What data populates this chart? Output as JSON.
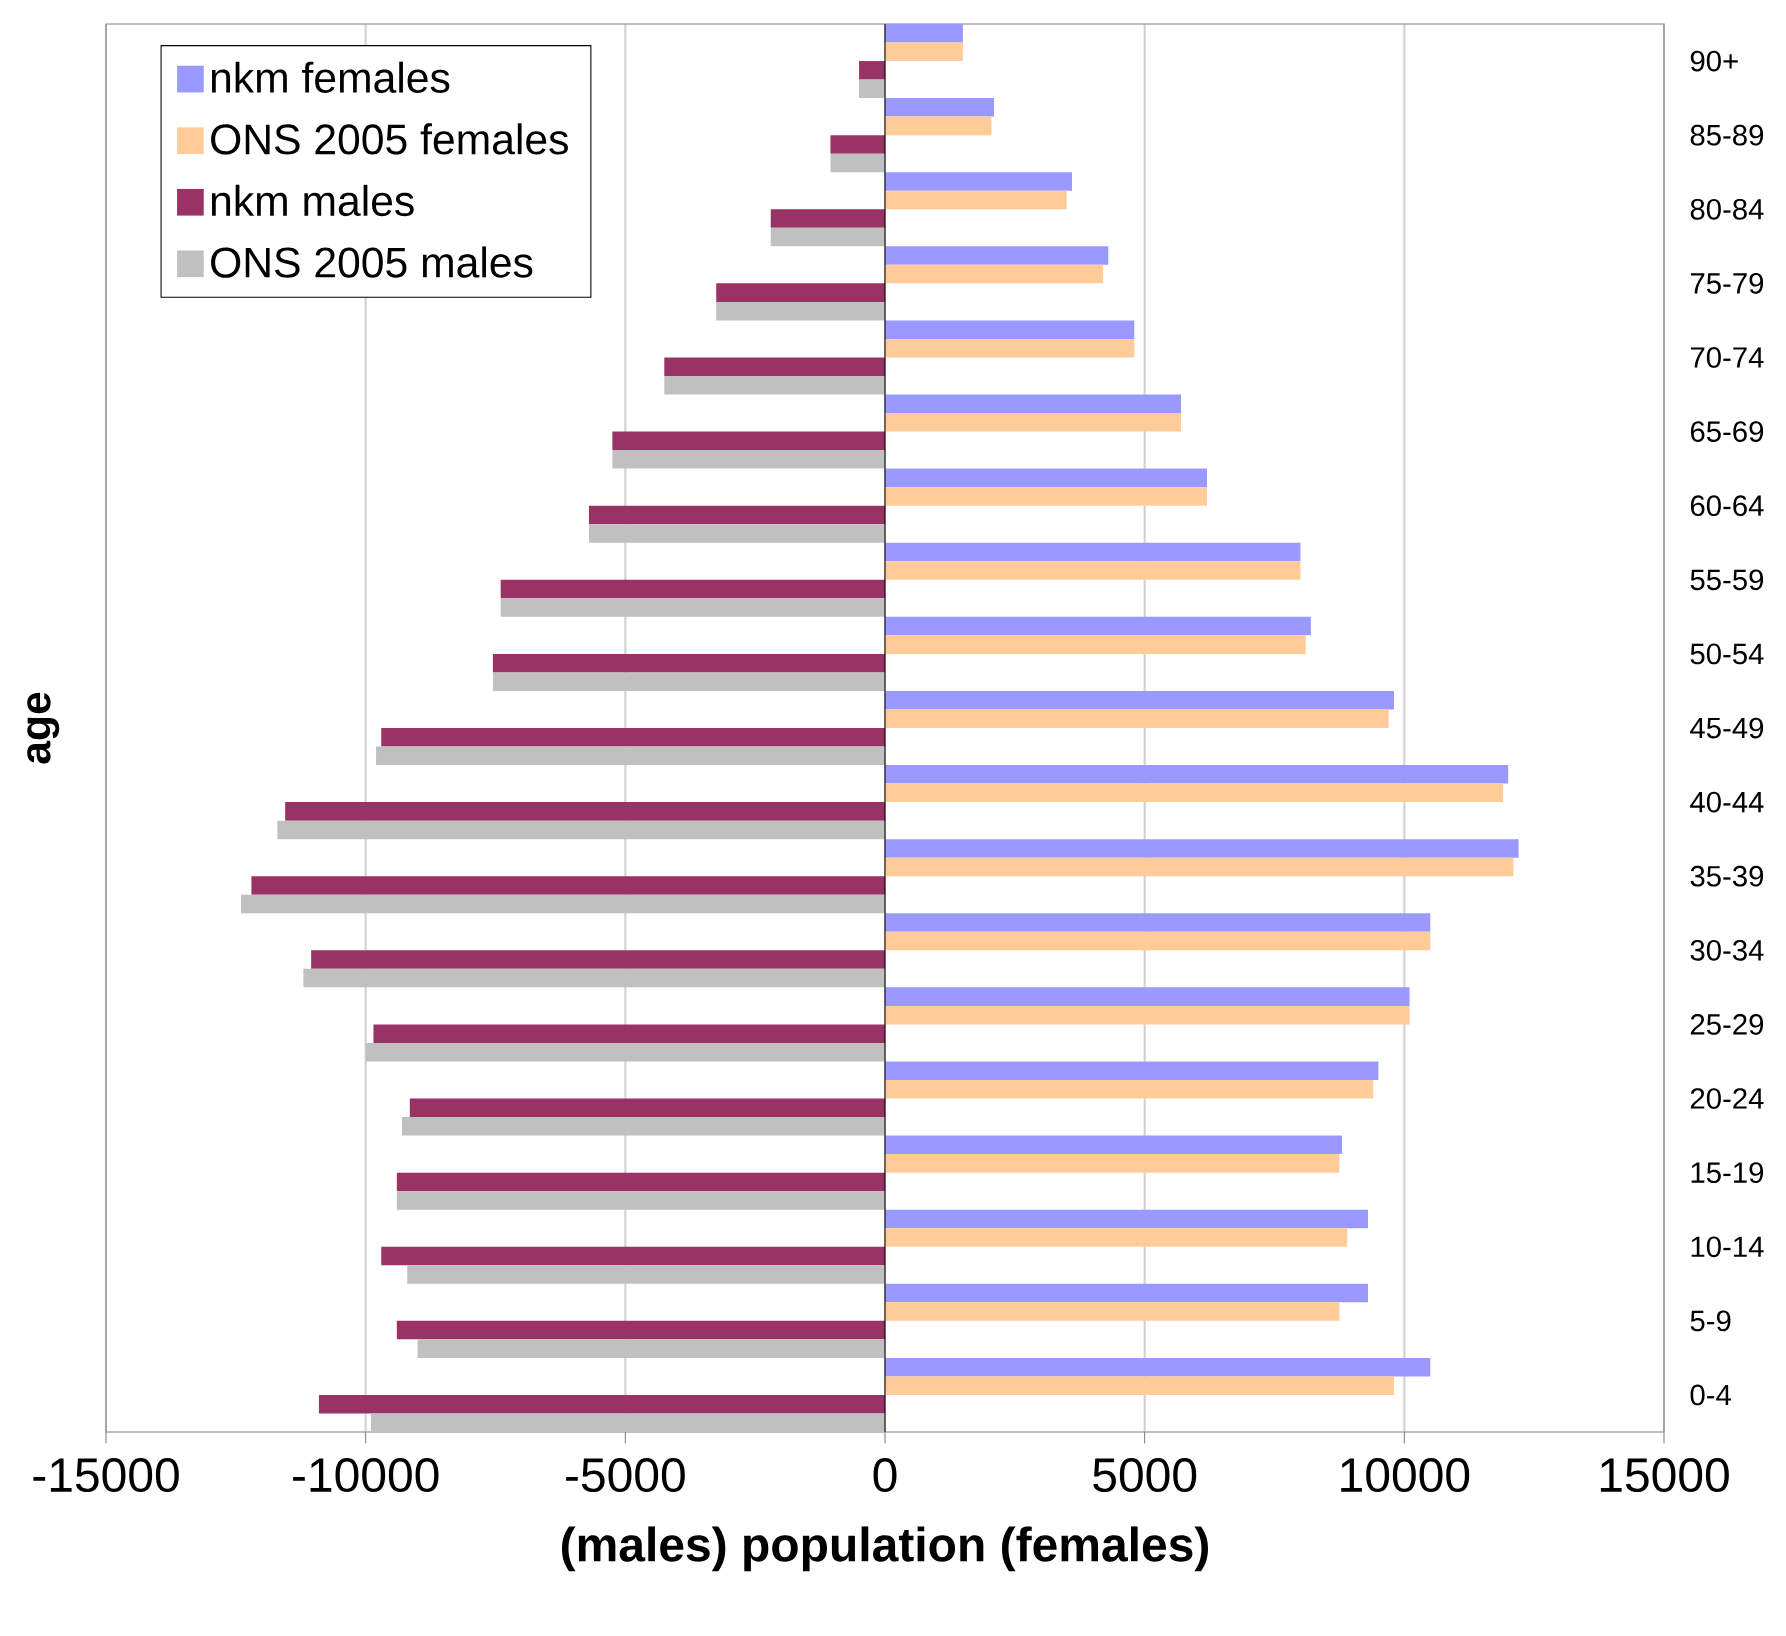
{
  "chart_data": {
    "type": "bar",
    "orientation": "horizontal",
    "xlabel": "(males)    population  (females)",
    "ylabel": "age",
    "categories": [
      "90+",
      "85-89",
      "80-84",
      "75-79",
      "70-74",
      "65-69",
      "60-64",
      "55-59",
      "50-54",
      "45-49",
      "40-44",
      "35-39",
      "30-34",
      "25-29",
      "20-24",
      "15-19",
      "10-14",
      "5-9",
      "0-4"
    ],
    "series": [
      {
        "name": "nkm females",
        "color": "#9999ff",
        "values": [
          1500,
          2100,
          3600,
          4300,
          4800,
          5700,
          6200,
          8000,
          8200,
          9800,
          12000,
          12200,
          10500,
          10100,
          9500,
          8800,
          9300,
          9300,
          10500
        ]
      },
      {
        "name": "ONS 2005 females",
        "color": "#ffcc99",
        "values": [
          1500,
          2050,
          3500,
          4200,
          4800,
          5700,
          6200,
          8000,
          8100,
          9700,
          11900,
          12100,
          10500,
          10100,
          9400,
          8750,
          8900,
          8750,
          9800
        ]
      },
      {
        "name": "nkm males",
        "color": "#993366",
        "values": [
          -500,
          -1050,
          -2200,
          -3250,
          -4250,
          -5250,
          -5700,
          -7400,
          -7550,
          -9700,
          -11550,
          -12200,
          -11050,
          -9850,
          -9150,
          -9400,
          -9700,
          -9400,
          -10900
        ]
      },
      {
        "name": "ONS 2005 males",
        "color": "#c0c0c0",
        "values": [
          -500,
          -1050,
          -2200,
          -3250,
          -4250,
          -5250,
          -5700,
          -7400,
          -7550,
          -9800,
          -11700,
          -12400,
          -11200,
          -10000,
          -9300,
          -9400,
          -9200,
          -9000,
          -9900
        ]
      }
    ],
    "xlim": [
      -15000,
      15000
    ],
    "xticks": [
      -15000,
      -10000,
      -5000,
      0,
      5000,
      10000,
      15000
    ],
    "grid": "x",
    "legend": "top left"
  }
}
